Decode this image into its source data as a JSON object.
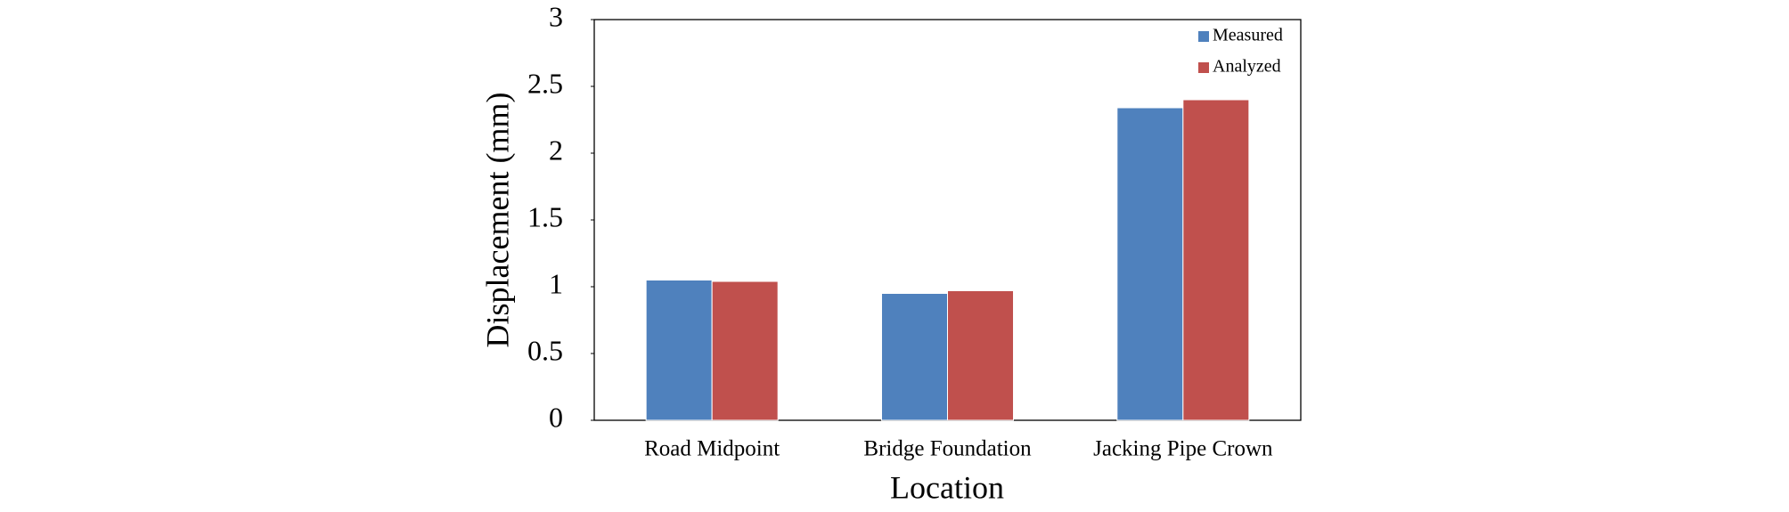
{
  "chart_data": {
    "type": "bar",
    "x_label": "Location",
    "y_label": "Displacement  (mm)",
    "categories": [
      "Road Midpoint",
      "Bridge Foundation",
      "Jacking Pipe Crown"
    ],
    "series": [
      {
        "name": "Measured",
        "color": "#4f81bd",
        "values": [
          1.05,
          0.95,
          2.34
        ]
      },
      {
        "name": "Analyzed",
        "color": "#c0504d",
        "values": [
          1.04,
          0.97,
          2.4
        ]
      }
    ],
    "ylim": [
      0,
      3
    ],
    "yticks": [
      0,
      0.5,
      1,
      1.5,
      2,
      2.5,
      3
    ],
    "grid": false,
    "legend": "top-right"
  }
}
